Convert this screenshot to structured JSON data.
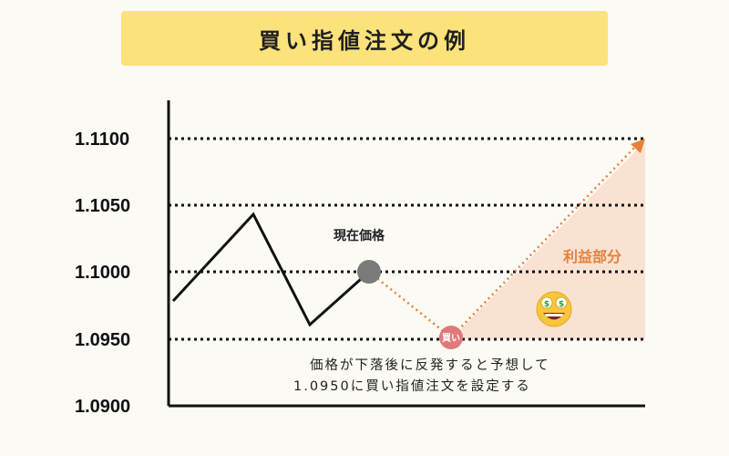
{
  "title": "買い指値注文の例",
  "chart_data": {
    "type": "line",
    "yticks": [
      "1.1100",
      "1.1050",
      "1.1000",
      "1.0950",
      "1.0900"
    ],
    "ylim": [
      1.09,
      1.11
    ],
    "grid": "dotted horizontal at 1.0950, 1.1000, 1.1050, 1.1100",
    "series": [
      {
        "style": "solid-black",
        "values": [
          1.098,
          1.1043,
          1.0961,
          1.1
        ]
      },
      {
        "style": "dotted-orange",
        "values": [
          1.1,
          1.095,
          1.11
        ]
      }
    ],
    "current_price": {
      "label": "現在価格",
      "value": 1.1
    },
    "buy_point": {
      "label": "買い",
      "value": 1.095
    },
    "profit_label": "利益部分",
    "note_lines": [
      "価格が下落後に反発すると予想して",
      "1.0950に買い指値注文を設定する"
    ],
    "colors": {
      "price_line": "#111111",
      "forecast_line": "#e8803a",
      "profit_area": "#f9e2d2",
      "current_dot": "#7a7a7a",
      "buy_dot": "#e07a7a",
      "title_bg": "#fbe27a"
    },
    "emoji_icon": "money-eyes-emoji"
  }
}
